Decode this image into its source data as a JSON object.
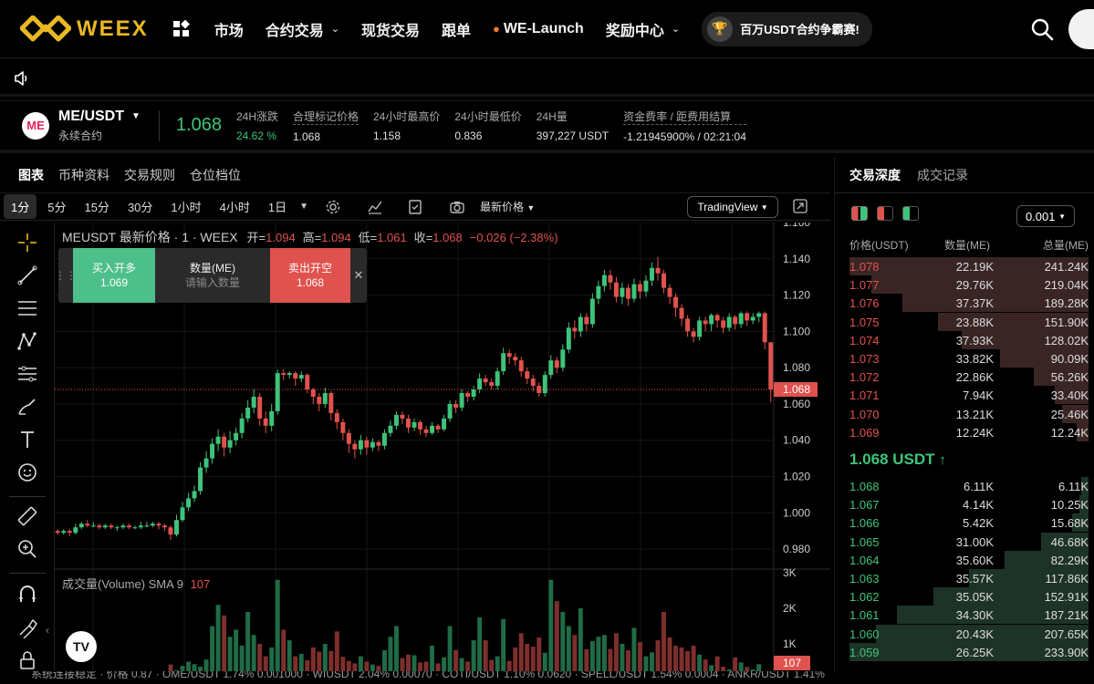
{
  "brand": {
    "name": "WEEX"
  },
  "nav": {
    "items": [
      {
        "label": "市场",
        "dropdown": false
      },
      {
        "label": "合约交易",
        "dropdown": true
      },
      {
        "label": "现货交易",
        "dropdown": false
      },
      {
        "label": "跟单",
        "dropdown": false
      },
      {
        "label": "WE-Launch",
        "dropdown": false,
        "icon": "fire-icon"
      },
      {
        "label": "奖励中心",
        "dropdown": true
      }
    ],
    "promo": "百万USDT合约争霸赛!"
  },
  "ticker": {
    "coin_logo_text": "ME",
    "symbol": "ME/USDT",
    "type": "永续合约",
    "last_price": "1.068",
    "stats": [
      {
        "label": "24H涨跌",
        "value": "24.62 %",
        "color": "green"
      },
      {
        "label": "合理标记价格",
        "value": "1.068",
        "dashed": true
      },
      {
        "label": "24小时最高价",
        "value": "1.158"
      },
      {
        "label": "24小时最低价",
        "value": "0.836"
      },
      {
        "label": "24H量",
        "value": "397,227 USDT"
      },
      {
        "label": "资金费率 / 距费用结算",
        "value": "-1.21945900% / 02:21:04",
        "dashed": true
      }
    ]
  },
  "chart_tabs": [
    "图表",
    "币种资料",
    "交易规则",
    "仓位档位"
  ],
  "toolbar": {
    "timeframes": [
      "1分",
      "5分",
      "15分",
      "30分",
      "1小时",
      "4小时",
      "1日"
    ],
    "price_type": "最新价格",
    "brand": "TradingView"
  },
  "chart_legend": {
    "title": "MEUSDT 最新价格 · 1 · WEEX",
    "open_label": "开=",
    "open": "1.094",
    "high_label": "高=",
    "high": "1.094",
    "low_label": "低=",
    "low": "1.061",
    "close_label": "收=",
    "close": "1.068",
    "change": "−0.026 (−2.38%)"
  },
  "quick_trade": {
    "buy_label": "买入开多",
    "buy_price": "1.069",
    "qty_label": "数量(ME)",
    "qty_placeholder": "请输入数量",
    "sell_label": "卖出开空",
    "sell_price": "1.068"
  },
  "volume_legend": {
    "label": "成交量(Volume) SMA 9",
    "value": "107"
  },
  "colors": {
    "up": "#3ec47a",
    "down": "#e0524e",
    "brand": "#e8b923"
  },
  "chart_data": {
    "type": "candlestick",
    "ylim": [
      0.97,
      1.16
    ],
    "y_ticks": [
      "1.160",
      "1.140",
      "1.120",
      "1.100",
      "1.080",
      "1.060",
      "1.040",
      "1.020",
      "1.000",
      "0.980"
    ],
    "last_price_label": "1.068",
    "volume_ylim": [
      0,
      3000
    ],
    "volume_ticks": [
      "3K",
      "2K",
      "1K"
    ],
    "last_volume_label": "107",
    "candles": [
      [
        0.99,
        0.989,
        0.991,
        0.988
      ],
      [
        0.989,
        0.99,
        0.991,
        0.988
      ],
      [
        0.99,
        0.989,
        0.991,
        0.987
      ],
      [
        0.989,
        0.992,
        0.994,
        0.988
      ],
      [
        0.992,
        0.994,
        0.995,
        0.991
      ],
      [
        0.994,
        0.993,
        0.996,
        0.992
      ],
      [
        0.993,
        0.993,
        0.995,
        0.992
      ],
      [
        0.993,
        0.992,
        0.994,
        0.991
      ],
      [
        0.992,
        0.993,
        0.994,
        0.991
      ],
      [
        0.993,
        0.992,
        0.994,
        0.991
      ],
      [
        0.992,
        0.992,
        0.993,
        0.99
      ],
      [
        0.992,
        0.993,
        0.994,
        0.991
      ],
      [
        0.993,
        0.992,
        0.994,
        0.991
      ],
      [
        0.992,
        0.992,
        0.993,
        0.991
      ],
      [
        0.992,
        0.993,
        0.995,
        0.991
      ],
      [
        0.993,
        0.993,
        0.995,
        0.992
      ],
      [
        0.993,
        0.994,
        0.995,
        0.992
      ],
      [
        0.994,
        0.993,
        0.995,
        0.991
      ],
      [
        0.993,
        0.992,
        0.994,
        0.99
      ],
      [
        0.992,
        0.988,
        0.993,
        0.985
      ],
      [
        0.988,
        0.996,
        0.999,
        0.987
      ],
      [
        0.996,
        1.003,
        1.006,
        0.995
      ],
      [
        1.003,
        1.008,
        1.011,
        1.001
      ],
      [
        1.008,
        1.012,
        1.015,
        1.006
      ],
      [
        1.012,
        1.025,
        1.028,
        1.01
      ],
      [
        1.025,
        1.03,
        1.034,
        1.022
      ],
      [
        1.03,
        1.038,
        1.041,
        1.027
      ],
      [
        1.038,
        1.042,
        1.046,
        1.034
      ],
      [
        1.042,
        1.036,
        1.044,
        1.031
      ],
      [
        1.036,
        1.04,
        1.045,
        1.033
      ],
      [
        1.04,
        1.044,
        1.047,
        1.037
      ],
      [
        1.044,
        1.052,
        1.055,
        1.041
      ],
      [
        1.052,
        1.058,
        1.062,
        1.05
      ],
      [
        1.058,
        1.064,
        1.068,
        1.055
      ],
      [
        1.064,
        1.052,
        1.066,
        1.048
      ],
      [
        1.052,
        1.048,
        1.056,
        1.044
      ],
      [
        1.048,
        1.056,
        1.06,
        1.045
      ],
      [
        1.056,
        1.077,
        1.079,
        1.054
      ],
      [
        1.077,
        1.076,
        1.079,
        1.073
      ],
      [
        1.076,
        1.077,
        1.078,
        1.074
      ],
      [
        1.077,
        1.074,
        1.078,
        1.07
      ],
      [
        1.074,
        1.076,
        1.078,
        1.072
      ],
      [
        1.076,
        1.068,
        1.077,
        1.066
      ],
      [
        1.068,
        1.064,
        1.069,
        1.06
      ],
      [
        1.064,
        1.06,
        1.066,
        1.056
      ],
      [
        1.06,
        1.066,
        1.069,
        1.058
      ],
      [
        1.066,
        1.055,
        1.067,
        1.051
      ],
      [
        1.055,
        1.05,
        1.057,
        1.046
      ],
      [
        1.05,
        1.044,
        1.052,
        1.04
      ],
      [
        1.044,
        1.038,
        1.046,
        1.033
      ],
      [
        1.038,
        1.035,
        1.04,
        1.03
      ],
      [
        1.035,
        1.04,
        1.043,
        1.032
      ],
      [
        1.04,
        1.036,
        1.042,
        1.032
      ],
      [
        1.036,
        1.039,
        1.041,
        1.034
      ],
      [
        1.039,
        1.037,
        1.04,
        1.034
      ],
      [
        1.037,
        1.044,
        1.046,
        1.035
      ],
      [
        1.044,
        1.048,
        1.051,
        1.042
      ],
      [
        1.048,
        1.054,
        1.056,
        1.046
      ],
      [
        1.054,
        1.052,
        1.056,
        1.049
      ],
      [
        1.052,
        1.047,
        1.054,
        1.044
      ],
      [
        1.047,
        1.05,
        1.052,
        1.045
      ],
      [
        1.05,
        1.046,
        1.051,
        1.043
      ],
      [
        1.046,
        1.044,
        1.048,
        1.042
      ],
      [
        1.044,
        1.048,
        1.05,
        1.043
      ],
      [
        1.048,
        1.046,
        1.049,
        1.044
      ],
      [
        1.046,
        1.052,
        1.054,
        1.045
      ],
      [
        1.052,
        1.06,
        1.062,
        1.05
      ],
      [
        1.06,
        1.058,
        1.062,
        1.055
      ],
      [
        1.058,
        1.066,
        1.068,
        1.056
      ],
      [
        1.066,
        1.064,
        1.067,
        1.061
      ],
      [
        1.064,
        1.068,
        1.07,
        1.062
      ],
      [
        1.068,
        1.074,
        1.077,
        1.066
      ],
      [
        1.074,
        1.072,
        1.076,
        1.07
      ],
      [
        1.072,
        1.07,
        1.074,
        1.068
      ],
      [
        1.07,
        1.078,
        1.08,
        1.068
      ],
      [
        1.078,
        1.088,
        1.091,
        1.076
      ],
      [
        1.088,
        1.086,
        1.09,
        1.082
      ],
      [
        1.086,
        1.084,
        1.088,
        1.081
      ],
      [
        1.084,
        1.078,
        1.086,
        1.075
      ],
      [
        1.078,
        1.074,
        1.08,
        1.071
      ],
      [
        1.074,
        1.07,
        1.076,
        1.067
      ],
      [
        1.07,
        1.066,
        1.072,
        1.064
      ],
      [
        1.066,
        1.076,
        1.078,
        1.064
      ],
      [
        1.076,
        1.084,
        1.087,
        1.074
      ],
      [
        1.084,
        1.08,
        1.086,
        1.077
      ],
      [
        1.08,
        1.09,
        1.093,
        1.078
      ],
      [
        1.09,
        1.102,
        1.105,
        1.088
      ],
      [
        1.102,
        1.1,
        1.106,
        1.096
      ],
      [
        1.1,
        1.108,
        1.11,
        1.097
      ],
      [
        1.108,
        1.104,
        1.11,
        1.1
      ],
      [
        1.104,
        1.118,
        1.121,
        1.102
      ],
      [
        1.118,
        1.125,
        1.128,
        1.115
      ],
      [
        1.125,
        1.131,
        1.134,
        1.122
      ],
      [
        1.131,
        1.127,
        1.134,
        1.123
      ],
      [
        1.127,
        1.119,
        1.13,
        1.116
      ],
      [
        1.119,
        1.124,
        1.127,
        1.115
      ],
      [
        1.124,
        1.118,
        1.126,
        1.114
      ],
      [
        1.118,
        1.126,
        1.129,
        1.116
      ],
      [
        1.126,
        1.122,
        1.128,
        1.118
      ],
      [
        1.122,
        1.128,
        1.131,
        1.119
      ],
      [
        1.128,
        1.135,
        1.138,
        1.125
      ],
      [
        1.135,
        1.132,
        1.141,
        1.128
      ],
      [
        1.132,
        1.124,
        1.134,
        1.121
      ],
      [
        1.124,
        1.119,
        1.126,
        1.115
      ],
      [
        1.119,
        1.113,
        1.121,
        1.108
      ],
      [
        1.113,
        1.107,
        1.115,
        1.103
      ],
      [
        1.107,
        1.1,
        1.109,
        1.097
      ],
      [
        1.1,
        1.097,
        1.102,
        1.094
      ],
      [
        1.097,
        1.106,
        1.108,
        1.095
      ],
      [
        1.106,
        1.104,
        1.108,
        1.1
      ],
      [
        1.104,
        1.109,
        1.11,
        1.1
      ],
      [
        1.109,
        1.106,
        1.11,
        1.102
      ],
      [
        1.106,
        1.102,
        1.108,
        1.099
      ],
      [
        1.102,
        1.108,
        1.11,
        1.1
      ],
      [
        1.108,
        1.104,
        1.109,
        1.101
      ],
      [
        1.104,
        1.11,
        1.111,
        1.102
      ],
      [
        1.11,
        1.106,
        1.111,
        1.103
      ],
      [
        1.106,
        1.108,
        1.11,
        1.104
      ],
      [
        1.108,
        1.11,
        1.111,
        1.105
      ],
      [
        1.11,
        1.094,
        1.111,
        1.09
      ],
      [
        1.094,
        1.068,
        1.094,
        1.061
      ]
    ],
    "volumes": [
      180,
      150,
      160,
      140,
      210,
      170,
      130,
      150,
      140,
      160,
      120,
      150,
      140,
      130,
      160,
      150,
      170,
      140,
      190,
      420,
      260,
      380,
      500,
      430,
      360,
      560,
      1500,
      2100,
      1800,
      1200,
      1400,
      950,
      1900,
      1250,
      1000,
      650,
      900,
      2800,
      1400,
      1100,
      650,
      720,
      540,
      900,
      780,
      1000,
      800,
      1350,
      640,
      520,
      450,
      650,
      500,
      420,
      380,
      820,
      1200,
      1500,
      600,
      700,
      680,
      480,
      500,
      950,
      450,
      620,
      1500,
      820,
      600,
      500,
      1100,
      1750,
      1100,
      550,
      650,
      1700,
      520,
      900,
      1300,
      1000,
      920,
      1180,
      750,
      2800,
      2200,
      1900,
      1500,
      1250,
      2000,
      850,
      1080,
      1200,
      1250,
      860,
      1300,
      1000,
      820,
      1450,
      1050,
      650,
      760,
      1100,
      1900,
      1180,
      950,
      900,
      800,
      950,
      700,
      560,
      400,
      650,
      360,
      280,
      620,
      480,
      350,
      280,
      430,
      200,
      107
    ]
  },
  "orderbook": {
    "tabs": [
      "交易深度",
      "成交记录"
    ],
    "precision": "0.001",
    "headers": [
      "价格(USDT)",
      "数量(ME)",
      "总量(ME)"
    ],
    "asks": [
      {
        "price": "1.078",
        "qty": "22.19K",
        "total": "241.24K",
        "depth": 1.0
      },
      {
        "price": "1.077",
        "qty": "29.76K",
        "total": "219.04K",
        "depth": 0.91
      },
      {
        "price": "1.076",
        "qty": "37.37K",
        "total": "189.28K",
        "depth": 0.78
      },
      {
        "price": "1.075",
        "qty": "23.88K",
        "total": "151.90K",
        "depth": 0.63
      },
      {
        "price": "1.074",
        "qty": "37.93K",
        "total": "128.02K",
        "depth": 0.53
      },
      {
        "price": "1.073",
        "qty": "33.82K",
        "total": "90.09K",
        "depth": 0.37
      },
      {
        "price": "1.072",
        "qty": "22.86K",
        "total": "56.26K",
        "depth": 0.23
      },
      {
        "price": "1.071",
        "qty": "7.94K",
        "total": "33.40K",
        "depth": 0.14
      },
      {
        "price": "1.070",
        "qty": "13.21K",
        "total": "25.46K",
        "depth": 0.11
      },
      {
        "price": "1.069",
        "qty": "12.24K",
        "total": "12.24K",
        "depth": 0.05
      }
    ],
    "mid_price": "1.068 USDT",
    "mid_arrow": "↑",
    "bids": [
      {
        "price": "1.068",
        "qty": "6.11K",
        "total": "6.11K",
        "depth": 0.03
      },
      {
        "price": "1.067",
        "qty": "4.14K",
        "total": "10.25K",
        "depth": 0.04
      },
      {
        "price": "1.066",
        "qty": "5.42K",
        "total": "15.68K",
        "depth": 0.07
      },
      {
        "price": "1.065",
        "qty": "31.00K",
        "total": "46.68K",
        "depth": 0.2
      },
      {
        "price": "1.064",
        "qty": "35.60K",
        "total": "82.29K",
        "depth": 0.35
      },
      {
        "price": "1.063",
        "qty": "35.57K",
        "total": "117.86K",
        "depth": 0.5
      },
      {
        "price": "1.062",
        "qty": "35.05K",
        "total": "152.91K",
        "depth": 0.65
      },
      {
        "price": "1.061",
        "qty": "34.30K",
        "total": "187.21K",
        "depth": 0.8
      },
      {
        "price": "1.060",
        "qty": "20.43K",
        "total": "207.65K",
        "depth": 0.89
      },
      {
        "price": "1.059",
        "qty": "26.25K",
        "total": "233.90K",
        "depth": 1.0
      }
    ]
  },
  "status_bar": {
    "text": "系统连接稳定 · 价格 0.87 · OME/USDT 1.74% 0.001000 · WIUSDT 2.04% 0.00070 · COTI/USDT 1.10% 0.0620 · SPELL/USDT 1.54% 0.0004 · ANKR/USDT 1.41%"
  }
}
